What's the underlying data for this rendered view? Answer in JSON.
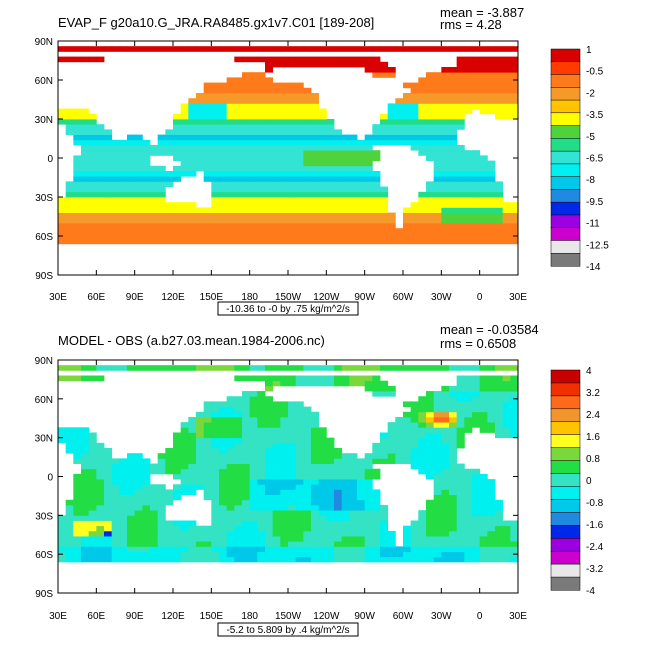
{
  "panels": [
    {
      "title": "EVAP_F g20a10.G_JRA.RA8485.gx1v7.C01 [189-208]",
      "mean_text": "mean = -3.887",
      "rms_text": "rms = 4.28",
      "info_text": "-10.36 to -0 by .75 kg/m^2/s",
      "colorbar": {
        "labels": [
          "1",
          "-0.5",
          "-2",
          "-3.5",
          "-5",
          "-6.5",
          "-8",
          "-9.5",
          "-11",
          "-12.5",
          "-14"
        ],
        "colors": [
          "#d90000",
          "#ff3b00",
          "#ff7a1a",
          "#f59a2a",
          "#ffc400",
          "#ffff00",
          "#4fd23c",
          "#22dd88",
          "#33e3d3",
          "#00f0f0",
          "#00c8e8",
          "#1f8ae0",
          "#0028e8",
          "#9a00e0",
          "#cc00cc",
          "#e8e8e8",
          "#7a7a7a"
        ]
      }
    },
    {
      "title": "MODEL - OBS (a.b27.03.mean.1984-2006.nc)",
      "mean_text": "mean = -0.03584",
      "rms_text": "rms = 0.6508",
      "info_text": "-5.2 to 5.809 by .4 kg/m^2/s",
      "colorbar": {
        "labels": [
          "4",
          "3.2",
          "2.4",
          "1.6",
          "0.8",
          "0",
          "-0.8",
          "-1.6",
          "-2.4",
          "-3.2",
          "-4"
        ],
        "colors": [
          "#c80000",
          "#f03000",
          "#ff6a1a",
          "#f0962a",
          "#ffc400",
          "#ffff20",
          "#7ad83c",
          "#22dd44",
          "#33e3c3",
          "#00f0f0",
          "#00c8e8",
          "#1f8ae0",
          "#0028e8",
          "#9a00e0",
          "#cc00cc",
          "#e8e8e8",
          "#7a7a7a"
        ]
      }
    }
  ],
  "chart_data": [
    {
      "type": "heatmap",
      "title": "EVAP_F g20a10.G_JRA.RA8485.gx1v7.C01 [189-208]",
      "xlabel": "",
      "ylabel": "",
      "x_tick_labels": [
        "30E",
        "60E",
        "90E",
        "120E",
        "150E",
        "180",
        "150W",
        "120W",
        "90W",
        "60W",
        "30W",
        "0",
        "30E"
      ],
      "y_tick_labels": [
        "90N",
        "60N",
        "30N",
        "0",
        "30S",
        "60S",
        "90S"
      ],
      "xlim": [
        30,
        390
      ],
      "ylim": [
        -90,
        90
      ],
      "units": "kg/m^2/s",
      "mean": -3.887,
      "rms": 4.28,
      "data_range": [
        -10.36,
        0
      ],
      "contour_interval": 0.75,
      "colorbar_levels": [
        1,
        -0.5,
        -2,
        -3.5,
        -5,
        -6.5,
        -8,
        -9.5,
        -11,
        -12.5,
        -14
      ],
      "zonal_means_approx": [
        {
          "lat": 80,
          "value": 0.5
        },
        {
          "lat": 60,
          "value": -1.5
        },
        {
          "lat": 45,
          "value": -2.5
        },
        {
          "lat": 30,
          "value": -4.5
        },
        {
          "lat": 15,
          "value": -5.5
        },
        {
          "lat": 0,
          "value": -6.0
        },
        {
          "lat": -15,
          "value": -5.5
        },
        {
          "lat": -30,
          "value": -4.0
        },
        {
          "lat": -45,
          "value": -2.0
        },
        {
          "lat": -60,
          "value": -0.5
        },
        {
          "lat": -70,
          "value": 0.5
        }
      ]
    },
    {
      "type": "heatmap",
      "title": "MODEL - OBS (a.b27.03.mean.1984-2006.nc)",
      "xlabel": "",
      "ylabel": "",
      "x_tick_labels": [
        "30E",
        "60E",
        "90E",
        "120E",
        "150E",
        "180",
        "150W",
        "120W",
        "90W",
        "60W",
        "30W",
        "0",
        "30E"
      ],
      "y_tick_labels": [
        "90N",
        "60N",
        "30N",
        "0",
        "30S",
        "60S",
        "90S"
      ],
      "xlim": [
        30,
        390
      ],
      "ylim": [
        -90,
        90
      ],
      "units": "kg/m^2/s",
      "mean": -0.03584,
      "rms": 0.6508,
      "data_range": [
        -5.2,
        5.809
      ],
      "contour_interval": 0.4,
      "colorbar_levels": [
        4,
        3.2,
        2.4,
        1.6,
        0.8,
        0,
        -0.8,
        -1.6,
        -2.4,
        -3.2,
        -4
      ],
      "zonal_means_approx": [
        {
          "lat": 80,
          "value": 0.3
        },
        {
          "lat": 60,
          "value": 0.4
        },
        {
          "lat": 45,
          "value": 0.8
        },
        {
          "lat": 30,
          "value": 0.2
        },
        {
          "lat": 15,
          "value": 0.0
        },
        {
          "lat": 0,
          "value": 0.2
        },
        {
          "lat": -15,
          "value": -0.3
        },
        {
          "lat": -30,
          "value": -0.3
        },
        {
          "lat": -45,
          "value": 0.4
        },
        {
          "lat": -60,
          "value": -0.5
        },
        {
          "lat": -70,
          "value": 0.0
        }
      ]
    }
  ]
}
